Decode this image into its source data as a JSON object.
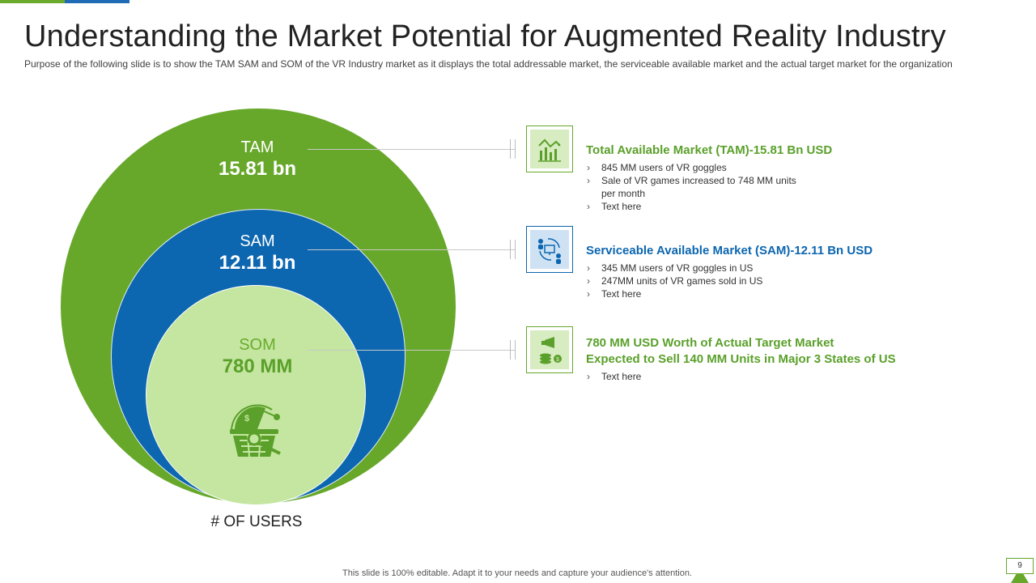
{
  "header": {
    "title": "Understanding the Market Potential for Augmented Reality Industry",
    "subtitle": "Purpose of the following slide is to show the TAM SAM and SOM of the VR Industry market as it displays the total addressable market, the serviceable available market and the actual target market for the organization"
  },
  "diagram": {
    "tam": {
      "name": "TAM",
      "value": "15.81 bn"
    },
    "sam": {
      "name": "SAM",
      "value": "12.11 bn"
    },
    "som": {
      "name": "SOM",
      "value": "780 MM"
    },
    "axis_label": "# OF USERS"
  },
  "blocks": [
    {
      "heading": "Total Available Market (TAM)-15.81 Bn USD",
      "icon": "bar-chart-trend-icon",
      "bullets": [
        "845 MM users of VR goggles",
        "Sale of VR games increased to 748 MM units per month",
        "Text here"
      ]
    },
    {
      "heading": "Serviceable Available Market (SAM)-12.11 Bn USD",
      "icon": "users-exchange-icon",
      "bullets": [
        "345 MM users of VR goggles in US",
        "247MM units of VR games sold in US",
        "Text here"
      ]
    },
    {
      "heading_line1": "780 MM USD Worth of Actual Target Market",
      "heading_line2": "Expected to Sell 140 MM Units in Major 3 States of US",
      "icon": "coins-megaphone-icon",
      "bullets": [
        "Text here"
      ]
    }
  ],
  "footer": {
    "text": "This slide is 100% editable. Adapt it to your needs and capture your audience's attention."
  },
  "page_number": "9",
  "colors": {
    "green": "#67a82b",
    "blue": "#0c66b0",
    "light_green": "#c4e6a0"
  }
}
